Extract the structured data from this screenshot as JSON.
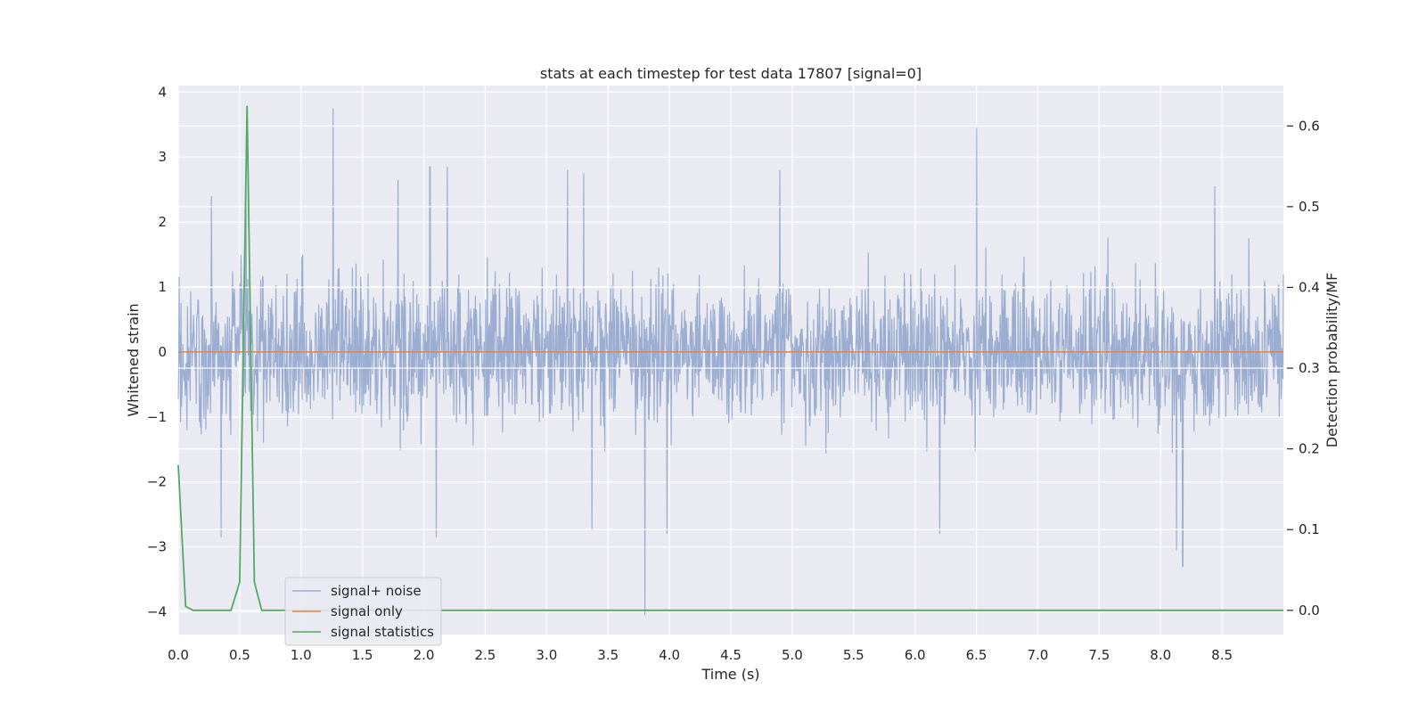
{
  "chart_data": {
    "type": "line",
    "title": "stats at each timestep for test data 17807 [signal=0]",
    "xlabel": "Time (s)",
    "ylabel": "Whitened strain",
    "y2label": "Detection probability/MF",
    "xlim": [
      0.0,
      9.0
    ],
    "ylim": [
      -4.35,
      4.1
    ],
    "y2lim": [
      -0.03,
      0.65
    ],
    "x_ticks": [
      0.0,
      0.5,
      1.0,
      1.5,
      2.0,
      2.5,
      3.0,
      3.5,
      4.0,
      4.5,
      5.0,
      5.5,
      6.0,
      6.5,
      7.0,
      7.5,
      8.0,
      8.5
    ],
    "x_tick_labels": [
      "0.0",
      "0.5",
      "1.0",
      "1.5",
      "2.0",
      "2.5",
      "3.0",
      "3.5",
      "4.0",
      "4.5",
      "5.0",
      "5.5",
      "6.0",
      "6.5",
      "7.0",
      "7.5",
      "8.0",
      "8.5"
    ],
    "y_ticks": [
      4,
      3,
      2,
      1,
      0,
      -1,
      -2,
      -3,
      -4
    ],
    "y_tick_labels": [
      "4",
      "3",
      "2",
      "1",
      "0",
      "−1",
      "−2",
      "−3",
      "−4"
    ],
    "y2_ticks": [
      0.6,
      0.5,
      0.4,
      0.3,
      0.2,
      0.1,
      0.0
    ],
    "y2_tick_labels": [
      "0.6",
      "0.5",
      "0.4",
      "0.3",
      "0.2",
      "0.1",
      "0.0"
    ],
    "grid": true,
    "legend_position": "lower-left",
    "series": [
      {
        "name": "signal+ noise",
        "axis": "left",
        "color": "#4c72b0",
        "kind": "noise",
        "sample_rate_hz": 2048,
        "envelope": {
          "typical_max": 1.9,
          "typical_min": -1.9,
          "peak_max": 3.75,
          "peak_min": -4.05
        },
        "peaks": [
          {
            "x": 0.27,
            "y": 2.4
          },
          {
            "x": 0.55,
            "y": 2.6
          },
          {
            "x": 1.26,
            "y": 3.75
          },
          {
            "x": 1.79,
            "y": 2.65
          },
          {
            "x": 2.05,
            "y": 2.85
          },
          {
            "x": 2.19,
            "y": 2.85
          },
          {
            "x": 3.17,
            "y": 2.8
          },
          {
            "x": 3.3,
            "y": 2.75
          },
          {
            "x": 4.9,
            "y": 2.8
          },
          {
            "x": 6.5,
            "y": 3.45
          },
          {
            "x": 8.44,
            "y": 2.55
          },
          {
            "x": 0.35,
            "y": -2.85
          },
          {
            "x": 2.1,
            "y": -2.85
          },
          {
            "x": 3.37,
            "y": -2.75
          },
          {
            "x": 3.8,
            "y": -4.05
          },
          {
            "x": 3.98,
            "y": -2.8
          },
          {
            "x": 8.13,
            "y": -3.05
          },
          {
            "x": 8.18,
            "y": -3.3
          },
          {
            "x": 6.2,
            "y": -2.8
          }
        ]
      },
      {
        "name": "signal only",
        "axis": "left",
        "color": "#dd8452",
        "x": [
          0.0,
          9.0
        ],
        "y": [
          0.0,
          0.0
        ]
      },
      {
        "name": "signal statistics",
        "axis": "right",
        "color": "#55a868",
        "x": [
          0.0,
          0.06,
          0.12,
          0.19,
          0.25,
          0.31,
          0.37,
          0.43,
          0.5,
          0.56,
          0.62,
          0.68,
          0.75,
          1.0,
          2.0,
          3.0,
          4.0,
          5.0,
          6.0,
          7.0,
          8.0,
          9.0
        ],
        "y": [
          0.18,
          0.005,
          0.0,
          0.0,
          0.0,
          0.0,
          0.0,
          0.0,
          0.035,
          0.625,
          0.035,
          0.0,
          0.0,
          0.0,
          0.0,
          0.0,
          0.0,
          0.0,
          0.0,
          0.0,
          0.0,
          0.0
        ]
      }
    ]
  }
}
